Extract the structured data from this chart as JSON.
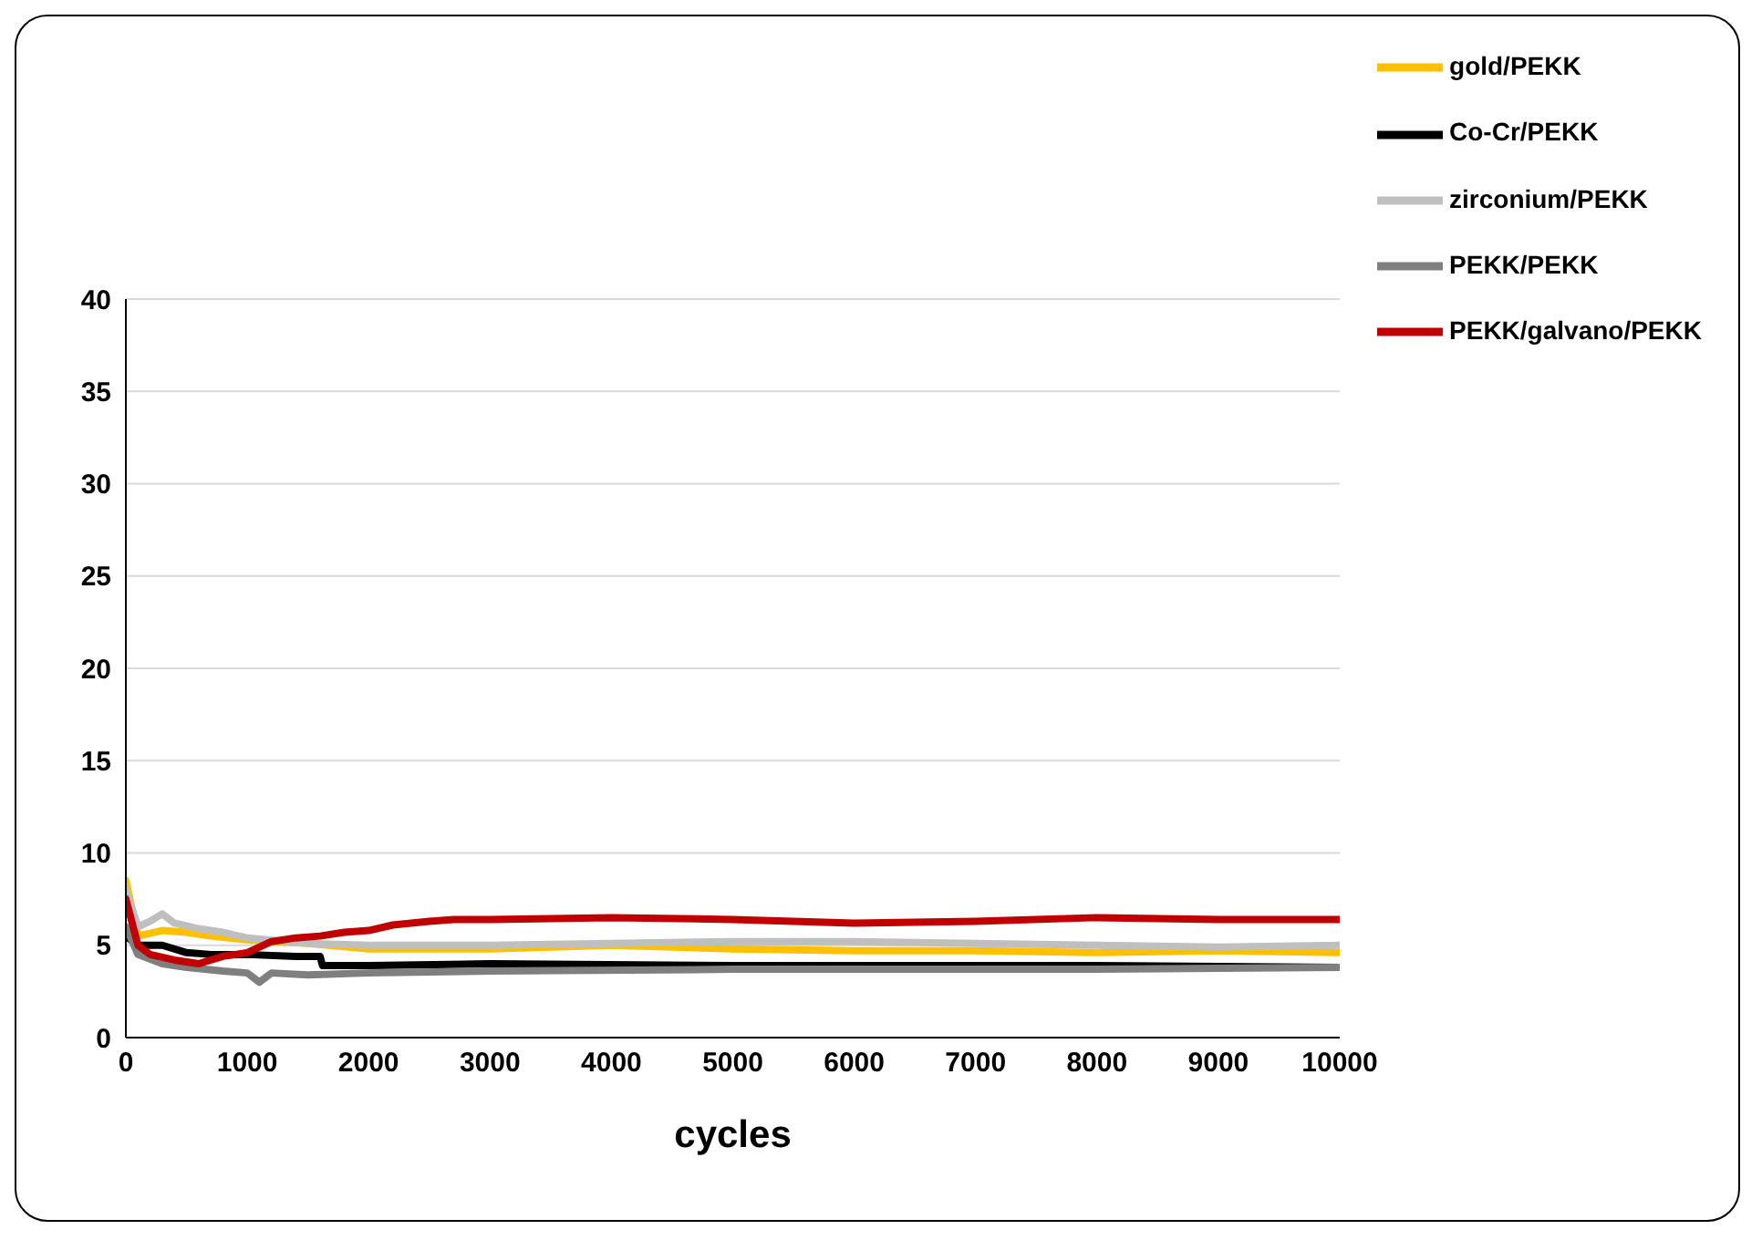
{
  "chart_data": {
    "type": "line",
    "xlabel": "cycles",
    "xlim": [
      0,
      10000
    ],
    "xticks": [
      0,
      1000,
      2000,
      3000,
      4000,
      5000,
      6000,
      7000,
      8000,
      9000,
      10000
    ],
    "ylim": [
      0,
      40
    ],
    "yticks": [
      0,
      5,
      10,
      15,
      20,
      25,
      30,
      35,
      40
    ],
    "grid": "y",
    "legend": "top right",
    "marker": "none",
    "line_style": "solid",
    "series": [
      {
        "name": "gold/PEKK",
        "color": "#ffc000",
        "x": [
          0,
          100,
          300,
          500,
          700,
          1000,
          1500,
          2000,
          3000,
          4000,
          5000,
          6000,
          7000,
          8000,
          9000,
          10000
        ],
        "values": [
          8.5,
          5.5,
          5.8,
          5.7,
          5.5,
          5.3,
          5.1,
          4.8,
          4.8,
          5.0,
          4.8,
          4.7,
          4.7,
          4.6,
          4.7,
          4.6
        ]
      },
      {
        "name": "Co-Cr/PEKK",
        "color": "#000000",
        "x": [
          0,
          100,
          300,
          500,
          700,
          1000,
          1400,
          1600,
          1620,
          2000,
          3000,
          5000,
          8000,
          10000
        ],
        "values": [
          5.5,
          5.0,
          5.0,
          4.6,
          4.5,
          4.5,
          4.4,
          4.4,
          3.9,
          3.9,
          4.0,
          3.9,
          3.9,
          3.8
        ]
      },
      {
        "name": "zirconium/PEKK",
        "color": "#bfbfbf",
        "x": [
          0,
          100,
          200,
          300,
          400,
          600,
          800,
          1000,
          1500,
          2000,
          3000,
          4000,
          5000,
          6000,
          7000,
          8000,
          9000,
          10000
        ],
        "values": [
          8,
          6,
          6.3,
          6.7,
          6.2,
          5.9,
          5.7,
          5.4,
          5.1,
          5.0,
          5.0,
          5.1,
          5.2,
          5.2,
          5.1,
          5.0,
          4.9,
          5.0
        ]
      },
      {
        "name": "PEKK/PEKK",
        "color": "#7f7f7f",
        "x": [
          0,
          100,
          300,
          500,
          800,
          1000,
          1100,
          1200,
          1500,
          2000,
          3000,
          5000,
          8000,
          10000
        ],
        "values": [
          6,
          4.5,
          4.0,
          3.8,
          3.6,
          3.5,
          3.0,
          3.5,
          3.4,
          3.5,
          3.6,
          3.7,
          3.7,
          3.8
        ]
      },
      {
        "name": "PEKK/galvano/PEKK",
        "color": "#c00000",
        "x": [
          0,
          100,
          200,
          400,
          600,
          800,
          1000,
          1200,
          1400,
          1600,
          1800,
          2000,
          2200,
          2500,
          2700,
          3000,
          4000,
          5000,
          5500,
          6000,
          7000,
          8000,
          9000,
          10000
        ],
        "values": [
          7.5,
          5,
          4.5,
          4.2,
          4.0,
          4.4,
          4.6,
          5.2,
          5.4,
          5.5,
          5.7,
          5.8,
          6.1,
          6.3,
          6.4,
          6.4,
          6.5,
          6.4,
          6.3,
          6.2,
          6.3,
          6.5,
          6.4,
          6.4
        ]
      }
    ]
  }
}
